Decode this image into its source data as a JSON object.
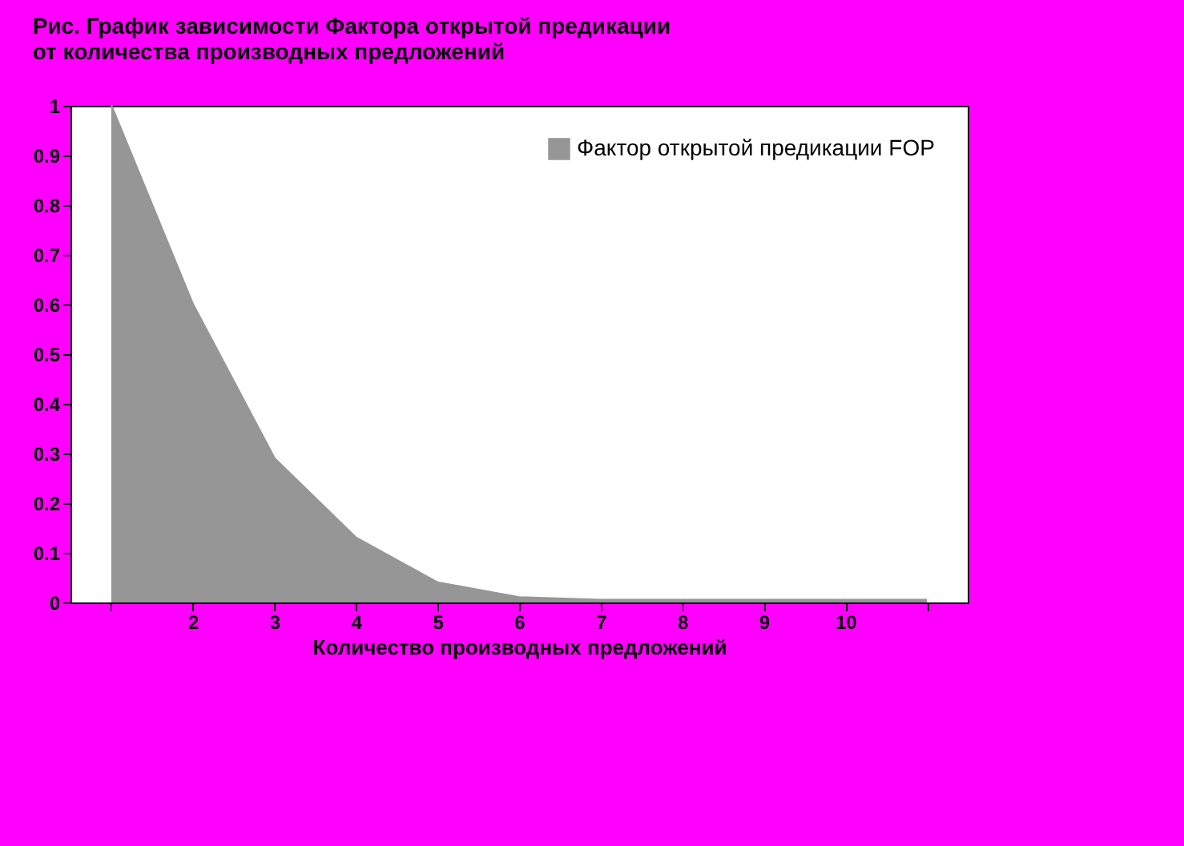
{
  "chart_data": {
    "type": "area",
    "title": "Рис. График зависимости Фактора открытой предикации от количества производных предложений",
    "xlabel": "Количество производных предложений",
    "categories": [
      null,
      "2",
      "3",
      "4",
      "5",
      "6",
      "7",
      "8",
      "9",
      "10",
      null
    ],
    "series": [
      {
        "name": "Фактор открытой предикации FOP",
        "color": "#969696",
        "values": [
          1,
          0.6,
          0.29,
          0.13,
          0.04,
          0.01,
          0.005,
          0.005,
          0.005,
          0.005,
          0.005
        ]
      }
    ],
    "ylim": [
      0,
      1
    ],
    "yticks": [
      0,
      0.1,
      0.2,
      0.3,
      0.4,
      0.5,
      0.6,
      0.7,
      0.8,
      0.9,
      1
    ],
    "grid": false,
    "legend": "top right"
  }
}
